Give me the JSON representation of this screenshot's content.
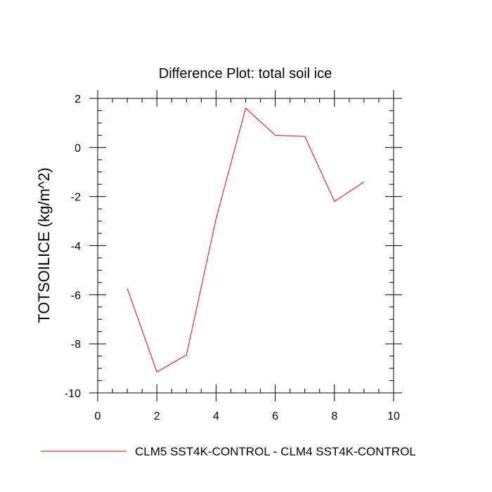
{
  "chart_data": {
    "type": "line",
    "title": "Difference Plot: total soil ice",
    "xlabel": "",
    "ylabel": "TOTSOILICE  (kg/m^2)",
    "xlim": [
      0,
      10
    ],
    "ylim": [
      -10,
      2
    ],
    "xticks": [
      0,
      2,
      4,
      6,
      8,
      10
    ],
    "yticks": [
      -10,
      -8,
      -6,
      -4,
      -2,
      0,
      2
    ],
    "grid": false,
    "legend_position": "bottom",
    "series": [
      {
        "name": "CLM5 SST4K-CONTROL - CLM4 SST4K-CONTROL",
        "color": "#ff0000",
        "x": [
          1,
          2,
          3,
          4,
          5,
          6,
          7,
          8,
          9
        ],
        "y": [
          -5.75,
          -9.15,
          -8.45,
          -2.9,
          1.6,
          0.5,
          0.45,
          -2.2,
          -1.4
        ]
      }
    ]
  }
}
